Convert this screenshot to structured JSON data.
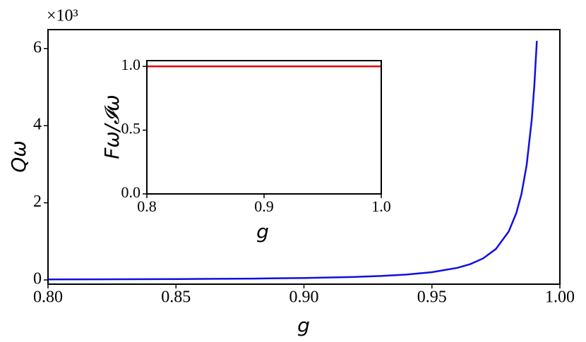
{
  "chart_data": [
    {
      "type": "line",
      "xlabel": "g",
      "ylabel": "Qω",
      "offset_label": "×10³",
      "x": [
        0.8,
        0.82,
        0.84,
        0.86,
        0.88,
        0.9,
        0.92,
        0.93,
        0.94,
        0.95,
        0.96,
        0.965,
        0.97,
        0.975,
        0.98,
        0.983,
        0.985,
        0.987,
        0.989,
        0.99,
        0.991
      ],
      "series": [
        {
          "color": "#1010e0",
          "values": [
            0.013,
            0.016,
            0.02,
            0.026,
            0.035,
            0.05,
            0.078,
            0.102,
            0.139,
            0.201,
            0.314,
            0.41,
            0.558,
            0.803,
            1.255,
            1.737,
            2.231,
            2.97,
            4.149,
            5.02,
            6.198
          ]
        }
      ],
      "xlim": [
        0.8,
        1.0
      ],
      "ylim": [
        -0.11,
        6.49
      ],
      "xticks": [
        {
          "value": 0.8,
          "label": "0.80"
        },
        0.85,
        {
          "value": 0.9,
          "label": "0.90"
        },
        0.95,
        {
          "value": 1.0,
          "label": "1.00"
        }
      ],
      "yticks": [
        0,
        2,
        4,
        6
      ]
    },
    {
      "type": "line",
      "xlabel": "g",
      "ylabel": "Fω/𝓘ω",
      "x": [
        0.8,
        1.0
      ],
      "series": [
        {
          "color": "#e00000",
          "values": [
            1.0,
            1.0
          ]
        }
      ],
      "xlim": [
        0.8,
        1.0
      ],
      "ylim": [
        0,
        1.045
      ],
      "xticks": [
        0.8,
        0.9,
        {
          "value": 1.0,
          "label": "1.0"
        }
      ],
      "yticks": [
        {
          "value": 0,
          "label": "0.0"
        },
        0.5,
        {
          "value": 1.0,
          "label": "1.0"
        }
      ]
    }
  ]
}
